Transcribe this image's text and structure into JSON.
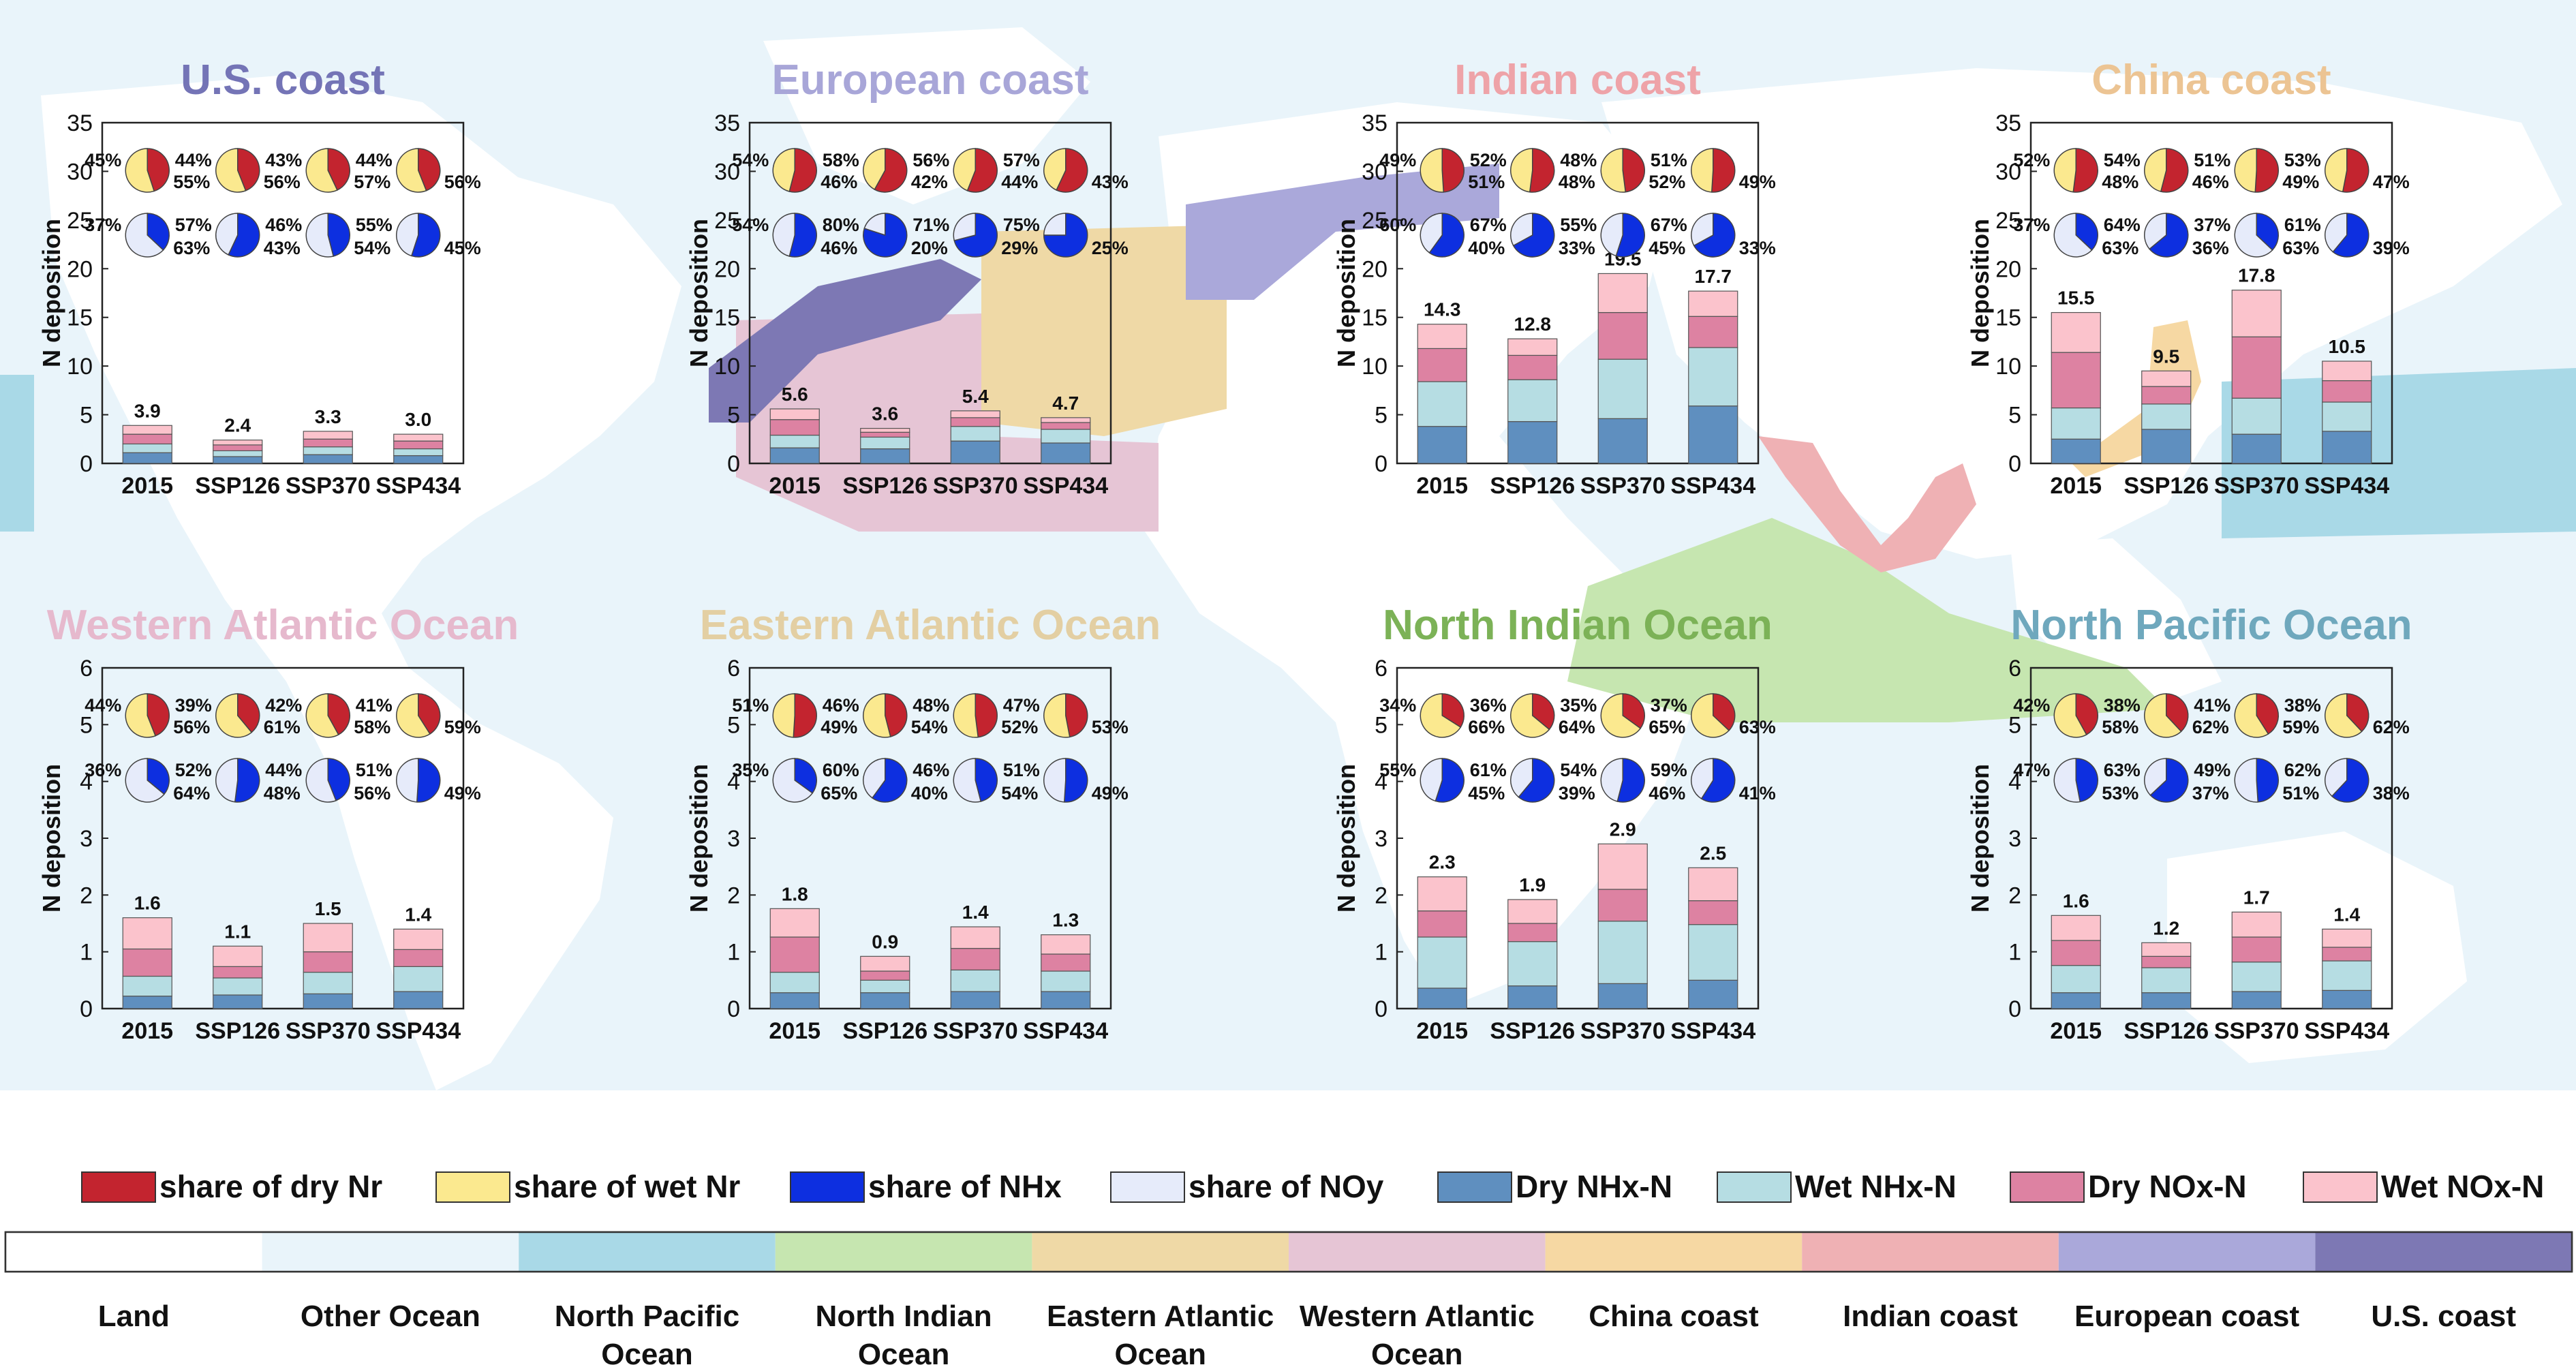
{
  "colors": {
    "dry_nr": "#c3242f",
    "wet_nr": "#fbe98f",
    "nhx": "#0d2fe0",
    "noy": "#e6ebfa",
    "dry_nhx_n": "#5f8fbf",
    "wet_nhx_n": "#b6dde3",
    "dry_nox_n": "#dd82a2",
    "wet_nox_n": "#fbc3cc",
    "ocean_bg": "#e9f4fa",
    "axis": "#222222"
  },
  "legend": {
    "items": [
      {
        "label": "share of dry Nr",
        "color": "#c3242f"
      },
      {
        "label": "share of wet Nr",
        "color": "#fbe98f"
      },
      {
        "label": "share of NHx",
        "color": "#0d2fe0"
      },
      {
        "label": "share of NOy",
        "color": "#e6ebfa"
      },
      {
        "label": "Dry NHx-N",
        "color": "#5f8fbf"
      },
      {
        "label": "Wet NHx-N",
        "color": "#b6dde3"
      },
      {
        "label": "Dry NOx-N",
        "color": "#dd82a2"
      },
      {
        "label": "Wet NOx-N",
        "color": "#fbc3cc"
      }
    ]
  },
  "region_key": {
    "items": [
      {
        "label": "Land",
        "color": "#ffffff"
      },
      {
        "label": "Other Ocean",
        "color": "#e9f4fa"
      },
      {
        "label": "North Pacific\nOcean",
        "color": "#a9d9e7"
      },
      {
        "label": "North Indian\nOcean",
        "color": "#c6e6b0"
      },
      {
        "label": "Eastern Atlantic\nOcean",
        "color": "#efd9a6"
      },
      {
        "label": "Western Atlantic\nOcean",
        "color": "#e6c5d5"
      },
      {
        "label": "China coast",
        "color": "#f6d8a3"
      },
      {
        "label": "Indian coast",
        "color": "#efb1b4"
      },
      {
        "label": "European coast",
        "color": "#aaa8da"
      },
      {
        "label": "U.S. coast",
        "color": "#7d78b4"
      }
    ]
  },
  "chart_data": [
    {
      "type": "bar",
      "title": "U.S. coast",
      "title_color": "#7474b6",
      "ylabel": "N deposition",
      "ylim": [
        0,
        35
      ],
      "yticks": [
        0,
        5,
        10,
        15,
        20,
        25,
        30,
        35
      ],
      "categories": [
        "2015",
        "SSP126",
        "SSP370",
        "SSP434"
      ],
      "series": [
        {
          "name": "Dry NHx-N",
          "values": [
            1.1,
            0.7,
            0.9,
            0.8
          ]
        },
        {
          "name": "Wet NHx-N",
          "values": [
            0.9,
            0.6,
            0.8,
            0.7
          ]
        },
        {
          "name": "Dry NOx-N",
          "values": [
            1.0,
            0.6,
            0.8,
            0.8
          ]
        },
        {
          "name": "Wet NOx-N",
          "values": [
            0.9,
            0.5,
            0.8,
            0.7
          ]
        }
      ],
      "totals": [
        "3.9",
        "2.4",
        "3.3",
        "3.0"
      ],
      "pies_dry_wet": [
        {
          "dry": 45,
          "wet": 55,
          "dry_label": "45%",
          "wet_label": "55%"
        },
        {
          "dry": 44,
          "wet": 56,
          "dry_label": "44%",
          "wet_label": "56%"
        },
        {
          "dry": 43,
          "wet": 57,
          "dry_label": "43%",
          "wet_label": "57%"
        },
        {
          "dry": 44,
          "wet": 56,
          "dry_label": "44%",
          "wet_label": "56%"
        }
      ],
      "pies_nhx_noy": [
        {
          "nhx": 37,
          "noy": 63,
          "nhx_label": "37%",
          "noy_label": "63%"
        },
        {
          "nhx": 57,
          "noy": 43,
          "nhx_label": "57%",
          "noy_label": "43%"
        },
        {
          "nhx": 46,
          "noy": 54,
          "nhx_label": "46%",
          "noy_label": "54%"
        },
        {
          "nhx": 55,
          "noy": 45,
          "nhx_label": "55%",
          "noy_label": "45%"
        }
      ]
    },
    {
      "type": "bar",
      "title": "European coast",
      "title_color": "#a8a6d8",
      "ylabel": "N deposition",
      "ylim": [
        0,
        35
      ],
      "yticks": [
        0,
        5,
        10,
        15,
        20,
        25,
        30,
        35
      ],
      "categories": [
        "2015",
        "SSP126",
        "SSP370",
        "SSP434"
      ],
      "series": [
        {
          "name": "Dry NHx-N",
          "values": [
            1.6,
            1.5,
            2.3,
            2.1
          ]
        },
        {
          "name": "Wet NHx-N",
          "values": [
            1.3,
            1.2,
            1.5,
            1.4
          ]
        },
        {
          "name": "Dry NOx-N",
          "values": [
            1.6,
            0.5,
            0.9,
            0.7
          ]
        },
        {
          "name": "Wet NOx-N",
          "values": [
            1.1,
            0.4,
            0.7,
            0.5
          ]
        }
      ],
      "totals": [
        "5.6",
        "3.6",
        "5.4",
        "4.7"
      ],
      "pies_dry_wet": [
        {
          "dry": 54,
          "wet": 46,
          "dry_label": "54%",
          "wet_label": "46%"
        },
        {
          "dry": 58,
          "wet": 42,
          "dry_label": "58%",
          "wet_label": "42%"
        },
        {
          "dry": 56,
          "wet": 44,
          "dry_label": "56%",
          "wet_label": "44%"
        },
        {
          "dry": 57,
          "wet": 43,
          "dry_label": "57%",
          "wet_label": "43%"
        }
      ],
      "pies_nhx_noy": [
        {
          "nhx": 54,
          "noy": 46,
          "nhx_label": "54%",
          "noy_label": "46%"
        },
        {
          "nhx": 80,
          "noy": 20,
          "nhx_label": "80%",
          "noy_label": "20%"
        },
        {
          "nhx": 71,
          "noy": 29,
          "nhx_label": "71%",
          "noy_label": "29%"
        },
        {
          "nhx": 75,
          "noy": 25,
          "nhx_label": "75%",
          "noy_label": "25%"
        }
      ]
    },
    {
      "type": "bar",
      "title": "Indian coast",
      "title_color": "#eea3a8",
      "ylabel": "N deposition",
      "ylim": [
        0,
        35
      ],
      "yticks": [
        0,
        5,
        10,
        15,
        20,
        25,
        30,
        35
      ],
      "categories": [
        "2015",
        "SSP126",
        "SSP370",
        "SSP434"
      ],
      "series": [
        {
          "name": "Dry NHx-N",
          "values": [
            3.8,
            4.3,
            4.6,
            5.9
          ]
        },
        {
          "name": "Wet NHx-N",
          "values": [
            4.6,
            4.3,
            6.1,
            6.0
          ]
        },
        {
          "name": "Dry NOx-N",
          "values": [
            3.4,
            2.5,
            4.8,
            3.2
          ]
        },
        {
          "name": "Wet NOx-N",
          "values": [
            2.5,
            1.7,
            4.0,
            2.6
          ]
        }
      ],
      "totals": [
        "14.3",
        "12.8",
        "19.5",
        "17.7"
      ],
      "pies_dry_wet": [
        {
          "dry": 49,
          "wet": 51,
          "dry_label": "49%",
          "wet_label": "51%"
        },
        {
          "dry": 52,
          "wet": 48,
          "dry_label": "52%",
          "wet_label": "48%"
        },
        {
          "dry": 48,
          "wet": 52,
          "dry_label": "48%",
          "wet_label": "52%"
        },
        {
          "dry": 51,
          "wet": 49,
          "dry_label": "51%",
          "wet_label": "49%"
        }
      ],
      "pies_nhx_noy": [
        {
          "nhx": 60,
          "noy": 40,
          "nhx_label": "60%",
          "noy_label": "40%"
        },
        {
          "nhx": 67,
          "noy": 33,
          "nhx_label": "67%",
          "noy_label": "33%"
        },
        {
          "nhx": 55,
          "noy": 45,
          "nhx_label": "55%",
          "noy_label": "45%"
        },
        {
          "nhx": 67,
          "noy": 33,
          "nhx_label": "67%",
          "noy_label": "33%"
        }
      ]
    },
    {
      "type": "bar",
      "title": "China coast",
      "title_color": "#ecc493",
      "ylabel": "N deposition",
      "ylim": [
        0,
        35
      ],
      "yticks": [
        0,
        5,
        10,
        15,
        20,
        25,
        30,
        35
      ],
      "categories": [
        "2015",
        "SSP126",
        "SSP370",
        "SSP434"
      ],
      "series": [
        {
          "name": "Dry NHx-N",
          "values": [
            2.5,
            3.5,
            3.0,
            3.3
          ]
        },
        {
          "name": "Wet NHx-N",
          "values": [
            3.2,
            2.6,
            3.7,
            3.0
          ]
        },
        {
          "name": "Dry NOx-N",
          "values": [
            5.7,
            1.8,
            6.3,
            2.2
          ]
        },
        {
          "name": "Wet NOx-N",
          "values": [
            4.1,
            1.6,
            4.8,
            2.0
          ]
        }
      ],
      "totals": [
        "15.5",
        "9.5",
        "17.8",
        "10.5"
      ],
      "pies_dry_wet": [
        {
          "dry": 52,
          "wet": 48,
          "dry_label": "52%",
          "wet_label": "48%"
        },
        {
          "dry": 54,
          "wet": 46,
          "dry_label": "54%",
          "wet_label": "46%"
        },
        {
          "dry": 51,
          "wet": 49,
          "dry_label": "51%",
          "wet_label": "49%"
        },
        {
          "dry": 53,
          "wet": 47,
          "dry_label": "53%",
          "wet_label": "47%"
        }
      ],
      "pies_nhx_noy": [
        {
          "nhx": 37,
          "noy": 63,
          "nhx_label": "37%",
          "noy_label": "63%"
        },
        {
          "nhx": 64,
          "noy": 36,
          "nhx_label": "64%",
          "noy_label": "36%"
        },
        {
          "nhx": 37,
          "noy": 63,
          "nhx_label": "37%",
          "noy_label": "63%"
        },
        {
          "nhx": 61,
          "noy": 39,
          "nhx_label": "61%",
          "noy_label": "39%"
        }
      ]
    },
    {
      "type": "bar",
      "title": "Western Atlantic Ocean",
      "title_color": "#e6b9cd",
      "ylabel": "N deposition",
      "ylim": [
        0,
        6
      ],
      "yticks": [
        0,
        1,
        2,
        3,
        4,
        5,
        6
      ],
      "categories": [
        "2015",
        "SSP126",
        "SSP370",
        "SSP434"
      ],
      "series": [
        {
          "name": "Dry NHx-N",
          "values": [
            0.22,
            0.24,
            0.26,
            0.3
          ]
        },
        {
          "name": "Wet NHx-N",
          "values": [
            0.35,
            0.3,
            0.38,
            0.44
          ]
        },
        {
          "name": "Dry NOx-N",
          "values": [
            0.48,
            0.2,
            0.36,
            0.3
          ]
        },
        {
          "name": "Wet NOx-N",
          "values": [
            0.55,
            0.36,
            0.5,
            0.36
          ]
        }
      ],
      "totals": [
        "1.6",
        "1.1",
        "1.5",
        "1.4"
      ],
      "pies_dry_wet": [
        {
          "dry": 44,
          "wet": 56,
          "dry_label": "44%",
          "wet_label": "56%"
        },
        {
          "dry": 39,
          "wet": 61,
          "dry_label": "39%",
          "wet_label": "61%"
        },
        {
          "dry": 42,
          "wet": 58,
          "dry_label": "42%",
          "wet_label": "58%"
        },
        {
          "dry": 41,
          "wet": 59,
          "dry_label": "41%",
          "wet_label": "59%"
        }
      ],
      "pies_nhx_noy": [
        {
          "nhx": 36,
          "noy": 64,
          "nhx_label": "36%",
          "noy_label": "64%"
        },
        {
          "nhx": 52,
          "noy": 48,
          "nhx_label": "52%",
          "noy_label": "48%"
        },
        {
          "nhx": 44,
          "noy": 56,
          "nhx_label": "44%",
          "noy_label": "56%"
        },
        {
          "nhx": 51,
          "noy": 49,
          "nhx_label": "51%",
          "noy_label": "49%"
        }
      ]
    },
    {
      "type": "bar",
      "title": "Eastern Atlantic Ocean",
      "title_color": "#e3cfa3",
      "ylabel": "N deposition",
      "ylim": [
        0,
        6
      ],
      "yticks": [
        0,
        1,
        2,
        3,
        4,
        5,
        6
      ],
      "categories": [
        "2015",
        "SSP126",
        "SSP370",
        "SSP434"
      ],
      "series": [
        {
          "name": "Dry NHx-N",
          "values": [
            0.28,
            0.28,
            0.3,
            0.3
          ]
        },
        {
          "name": "Wet NHx-N",
          "values": [
            0.36,
            0.22,
            0.38,
            0.36
          ]
        },
        {
          "name": "Dry NOx-N",
          "values": [
            0.62,
            0.16,
            0.38,
            0.3
          ]
        },
        {
          "name": "Wet NOx-N",
          "values": [
            0.5,
            0.26,
            0.38,
            0.34
          ]
        }
      ],
      "totals": [
        "1.8",
        "0.9",
        "1.4",
        "1.3"
      ],
      "pies_dry_wet": [
        {
          "dry": 51,
          "wet": 49,
          "dry_label": "51%",
          "wet_label": "49%"
        },
        {
          "dry": 46,
          "wet": 54,
          "dry_label": "46%",
          "wet_label": "54%"
        },
        {
          "dry": 48,
          "wet": 52,
          "dry_label": "48%",
          "wet_label": "52%"
        },
        {
          "dry": 47,
          "wet": 53,
          "dry_label": "47%",
          "wet_label": "53%"
        }
      ],
      "pies_nhx_noy": [
        {
          "nhx": 35,
          "noy": 65,
          "nhx_label": "35%",
          "noy_label": "65%"
        },
        {
          "nhx": 60,
          "noy": 40,
          "nhx_label": "60%",
          "noy_label": "40%"
        },
        {
          "nhx": 46,
          "noy": 54,
          "nhx_label": "46%",
          "noy_label": "54%"
        },
        {
          "nhx": 51,
          "noy": 49,
          "nhx_label": "51%",
          "noy_label": "49%"
        }
      ]
    },
    {
      "type": "bar",
      "title": "North Indian Ocean",
      "title_color": "#7cb257",
      "ylabel": "N deposition",
      "ylim": [
        0,
        6
      ],
      "yticks": [
        0,
        1,
        2,
        3,
        4,
        5,
        6
      ],
      "categories": [
        "2015",
        "SSP126",
        "SSP370",
        "SSP434"
      ],
      "series": [
        {
          "name": "Dry NHx-N",
          "values": [
            0.36,
            0.4,
            0.44,
            0.5
          ]
        },
        {
          "name": "Wet NHx-N",
          "values": [
            0.9,
            0.78,
            1.1,
            0.98
          ]
        },
        {
          "name": "Dry NOx-N",
          "values": [
            0.46,
            0.32,
            0.56,
            0.42
          ]
        },
        {
          "name": "Wet NOx-N",
          "values": [
            0.6,
            0.42,
            0.8,
            0.58
          ]
        }
      ],
      "totals": [
        "2.3",
        "1.9",
        "2.9",
        "2.5"
      ],
      "pies_dry_wet": [
        {
          "dry": 34,
          "wet": 66,
          "dry_label": "34%",
          "wet_label": "66%"
        },
        {
          "dry": 36,
          "wet": 64,
          "dry_label": "36%",
          "wet_label": "64%"
        },
        {
          "dry": 35,
          "wet": 65,
          "dry_label": "35%",
          "wet_label": "65%"
        },
        {
          "dry": 37,
          "wet": 63,
          "dry_label": "37%",
          "wet_label": "63%"
        }
      ],
      "pies_nhx_noy": [
        {
          "nhx": 55,
          "noy": 45,
          "nhx_label": "55%",
          "noy_label": "45%"
        },
        {
          "nhx": 61,
          "noy": 39,
          "nhx_label": "61%",
          "noy_label": "39%"
        },
        {
          "nhx": 54,
          "noy": 46,
          "nhx_label": "54%",
          "noy_label": "46%"
        },
        {
          "nhx": 59,
          "noy": 41,
          "nhx_label": "59%",
          "noy_label": "41%"
        }
      ]
    },
    {
      "type": "bar",
      "title": "North Pacific Ocean",
      "title_color": "#6fa8bd",
      "ylabel": "N deposition",
      "ylim": [
        0,
        6
      ],
      "yticks": [
        0,
        1,
        2,
        3,
        4,
        5,
        6
      ],
      "categories": [
        "2015",
        "SSP126",
        "SSP370",
        "SSP434"
      ],
      "series": [
        {
          "name": "Dry NHx-N",
          "values": [
            0.28,
            0.28,
            0.3,
            0.32
          ]
        },
        {
          "name": "Wet NHx-N",
          "values": [
            0.48,
            0.44,
            0.52,
            0.52
          ]
        },
        {
          "name": "Dry NOx-N",
          "values": [
            0.44,
            0.2,
            0.44,
            0.24
          ]
        },
        {
          "name": "Wet NOx-N",
          "values": [
            0.44,
            0.24,
            0.44,
            0.32
          ]
        }
      ],
      "totals": [
        "1.6",
        "1.2",
        "1.7",
        "1.4"
      ],
      "pies_dry_wet": [
        {
          "dry": 42,
          "wet": 58,
          "dry_label": "42%",
          "wet_label": "58%"
        },
        {
          "dry": 38,
          "wet": 62,
          "dry_label": "38%",
          "wet_label": "62%"
        },
        {
          "dry": 41,
          "wet": 59,
          "dry_label": "41%",
          "wet_label": "59%"
        },
        {
          "dry": 38,
          "wet": 62,
          "dry_label": "38%",
          "wet_label": "62%"
        }
      ],
      "pies_nhx_noy": [
        {
          "nhx": 47,
          "noy": 53,
          "nhx_label": "47%",
          "noy_label": "53%"
        },
        {
          "nhx": 63,
          "noy": 37,
          "nhx_label": "63%",
          "noy_label": "37%"
        },
        {
          "nhx": 49,
          "noy": 51,
          "nhx_label": "49%",
          "noy_label": "51%"
        },
        {
          "nhx": 62,
          "noy": 38,
          "nhx_label": "62%",
          "noy_label": "38%"
        }
      ]
    }
  ]
}
